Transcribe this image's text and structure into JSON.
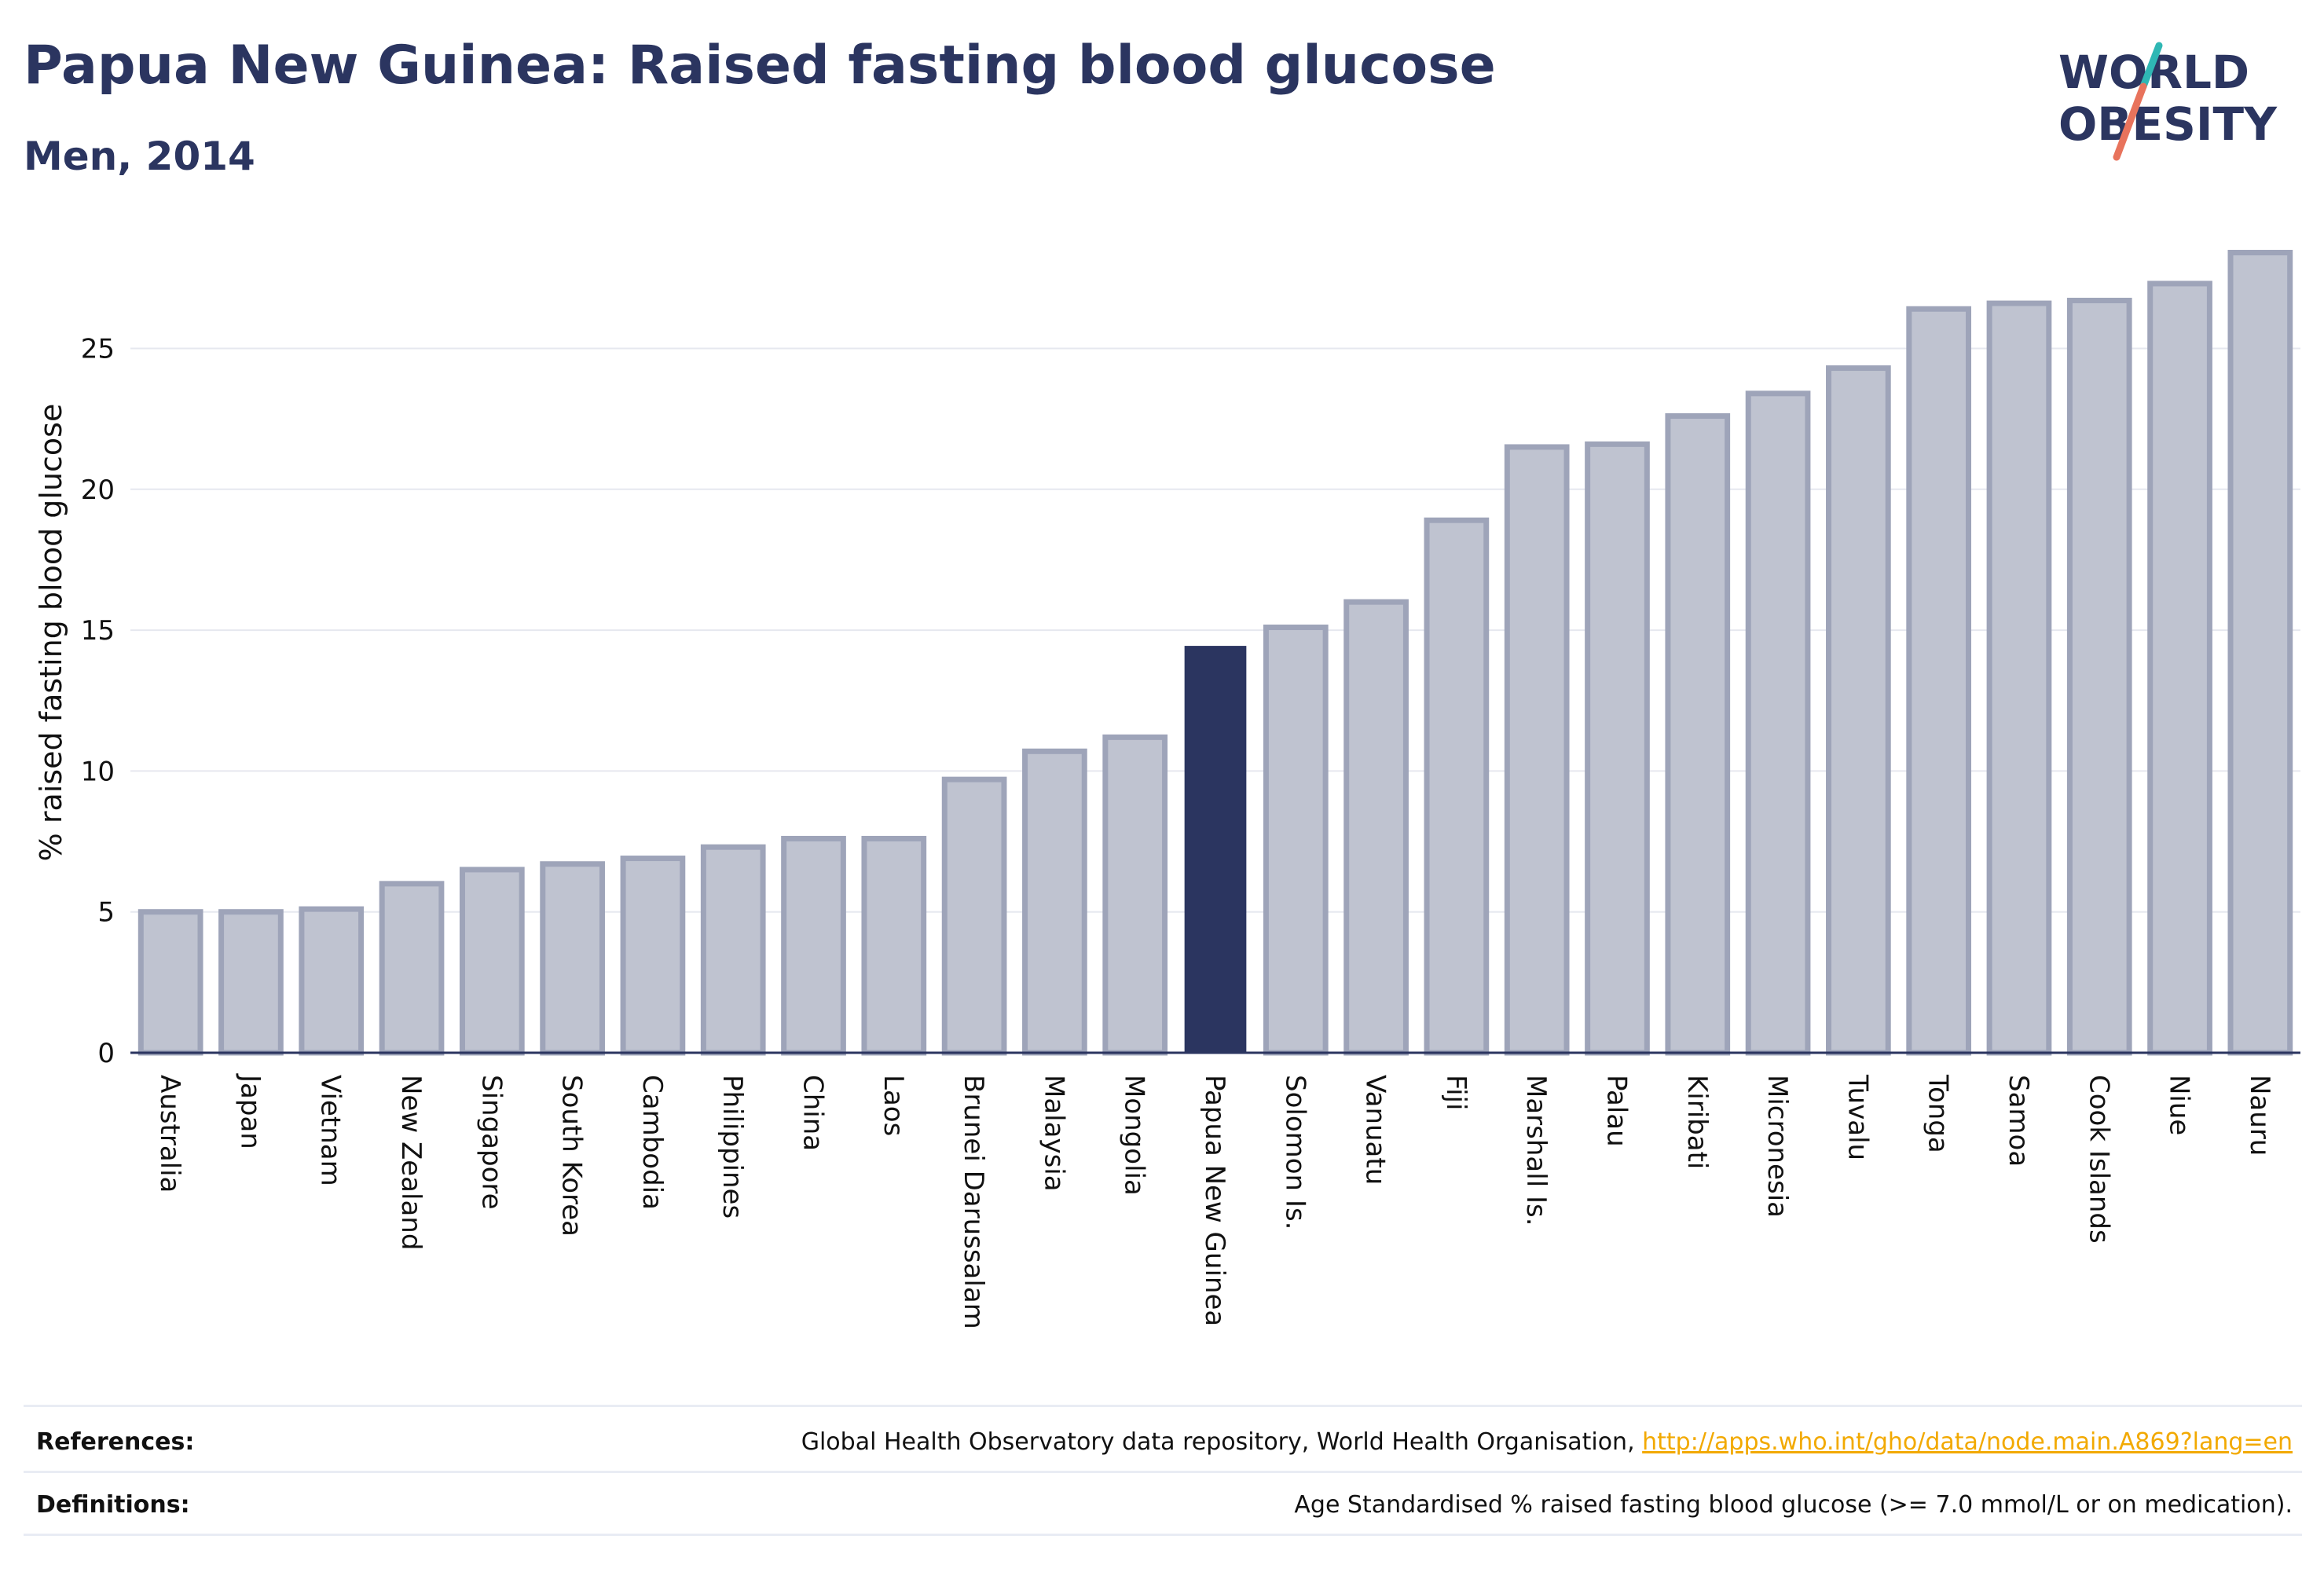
{
  "header": {
    "title": "Papua New Guinea: Raised fasting blood glucose",
    "subtitle": "Men, 2014"
  },
  "logo": {
    "line1": "WORLD",
    "line2": "OBESITY",
    "text_color": "#2b3560",
    "slash_top_color": "#2fb7b4",
    "slash_bottom_color": "#e8735c"
  },
  "chart_data": {
    "type": "bar",
    "title": "Papua New Guinea: Raised fasting blood glucose",
    "subtitle": "Men, 2014",
    "ylabel": "% raised fasting blood glucose",
    "xlabel": "",
    "ylim": [
      0,
      29
    ],
    "yticks": [
      0,
      5,
      10,
      15,
      20,
      25
    ],
    "grid": true,
    "highlight": "Papua New Guinea",
    "colors": {
      "bar_fill": "#bfc3d0",
      "bar_stroke": "#9ea4b9",
      "highlight": "#2b3560"
    },
    "categories": [
      "Australia",
      "Japan",
      "Vietnam",
      "New Zealand",
      "Singapore",
      "South Korea",
      "Cambodia",
      "Philippines",
      "China",
      "Laos",
      "Brunei Darussalam",
      "Malaysia",
      "Mongolia",
      "Papua New Guinea",
      "Solomon Is.",
      "Vanuatu",
      "Fiji",
      "Marshall Is.",
      "Palau",
      "Kiribati",
      "Micronesia",
      "Tuvalu",
      "Tonga",
      "Samoa",
      "Cook Islands",
      "Niue",
      "Nauru"
    ],
    "values": [
      5.0,
      5.0,
      5.1,
      6.0,
      6.5,
      6.7,
      6.9,
      7.3,
      7.6,
      7.6,
      9.7,
      10.7,
      11.2,
      14.4,
      15.1,
      16.0,
      18.9,
      21.5,
      21.6,
      22.6,
      23.4,
      24.3,
      26.4,
      26.6,
      26.7,
      27.3,
      28.4
    ]
  },
  "footer": {
    "references_label": "References:",
    "references_text": "Global Health Observatory data repository, World Health Organisation, ",
    "references_link": "http://apps.who.int/gho/data/node.main.A869?lang=en",
    "definitions_label": "Definitions:",
    "definitions_text": "Age Standardised % raised fasting blood glucose (>= 7.0 mmol/L or on medication)."
  }
}
